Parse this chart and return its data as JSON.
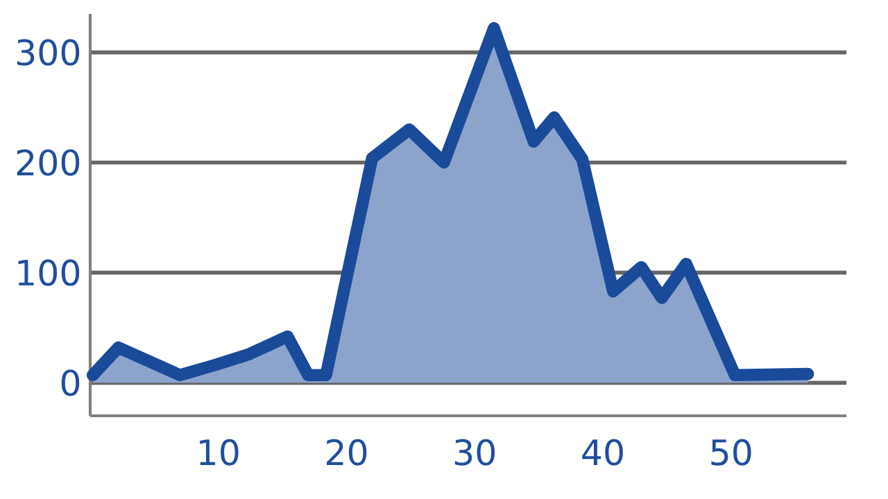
{
  "chart_data": {
    "type": "area",
    "x": [
      0.2,
      2.2,
      7,
      9.7,
      12.4,
      15.4,
      17,
      18.4,
      20,
      22,
      24.9,
      27.6,
      31.5,
      34.6,
      36.2,
      38.4,
      40.8,
      43,
      44.6,
      46.5,
      50.3,
      56
    ],
    "series": [
      {
        "color": "#1a4a9a",
        "values": [
          7,
          32,
          7,
          16,
          26,
          42,
          7,
          7,
          95,
          204,
          230,
          200,
          322,
          219,
          241,
          203,
          83,
          105,
          77,
          108,
          7,
          8
        ]
      }
    ],
    "xlim": [
      0,
      59
    ],
    "ylim": [
      -30,
      335
    ],
    "xticks": [
      10,
      20,
      30,
      40,
      50
    ],
    "yticks": [
      0,
      100,
      200,
      300
    ],
    "grid": "y"
  }
}
